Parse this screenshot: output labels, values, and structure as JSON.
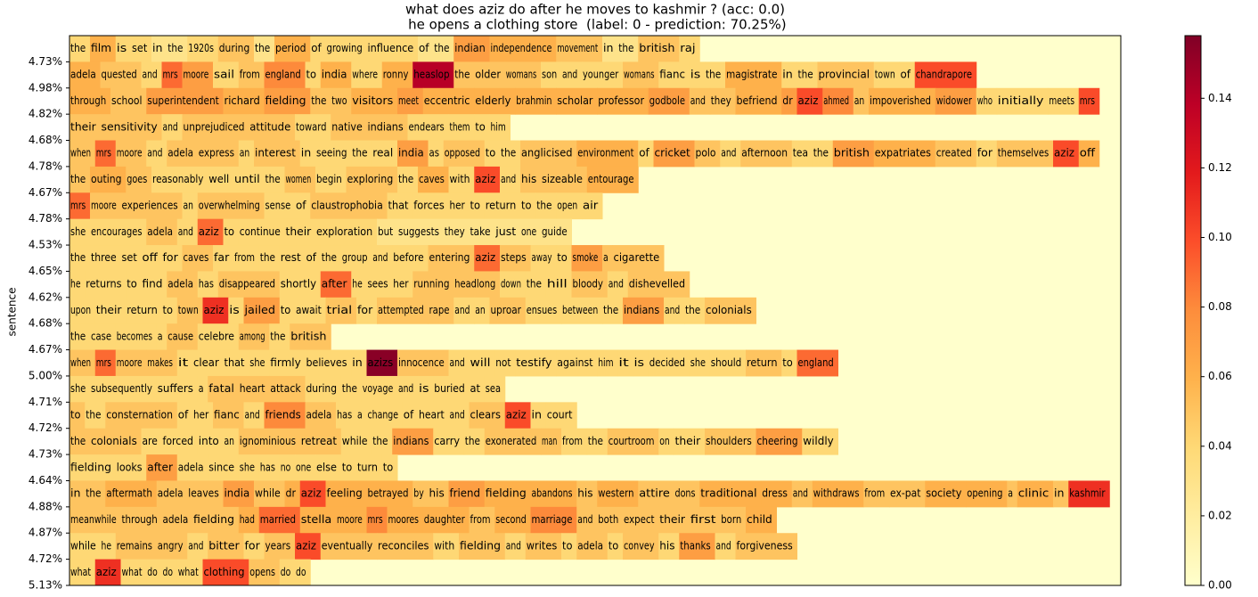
{
  "chart_data": {
    "type": "text-heatmap",
    "title": "what does aziz do after he moves to kashmir ? (acc: 0.0)",
    "subtitle": " he opens a clothing store  (label: 0 - prediction: 70.25%)",
    "ylabel": "sentence",
    "colormap": [
      "#ffffcc",
      "#ffeda0",
      "#fed976",
      "#feb24c",
      "#fd8d3c",
      "#fc4e2a",
      "#e31a1c",
      "#bd0026",
      "#800026"
    ],
    "clim": [
      0,
      0.158
    ],
    "cticks": [
      {
        "value": 0,
        "label": "0.00"
      },
      {
        "value": 0.02,
        "label": "0.02"
      },
      {
        "value": 0.04,
        "label": "0.04"
      },
      {
        "value": 0.06,
        "label": "0.06"
      },
      {
        "value": 0.08,
        "label": "0.08"
      },
      {
        "value": 0.1,
        "label": "0.10"
      },
      {
        "value": 0.12,
        "label": "0.12"
      },
      {
        "value": 0.14,
        "label": "0.14"
      }
    ],
    "rows": [
      {
        "label": "4.73%",
        "words": [
          "the",
          "film",
          "is",
          "set",
          "in",
          "the",
          "1920s",
          "during",
          "the",
          "period",
          "of",
          "growing",
          "influence",
          "of",
          "the",
          "indian",
          "independence",
          "movement",
          "in",
          "the",
          "british",
          "raj"
        ],
        "values": [
          0.04,
          0.06,
          0.04,
          0.04,
          0.03,
          0.03,
          0.04,
          0.05,
          0.03,
          0.06,
          0.04,
          0.04,
          0.04,
          0.03,
          0.03,
          0.07,
          0.06,
          0.05,
          0.03,
          0.03,
          0.05,
          0.04
        ]
      },
      {
        "label": "4.98%",
        "words": [
          "adela",
          "quested",
          "and",
          "mrs",
          "moore",
          "sail",
          "from",
          "england",
          "to",
          "india",
          "where",
          "ronny",
          "heaslop",
          "the",
          "older",
          "womans",
          "son",
          "and",
          "younger",
          "womans",
          "fianc",
          "is",
          "the",
          "magistrate",
          "in",
          "the",
          "provincial",
          "town",
          "of",
          "chandrapore"
        ],
        "values": [
          0.06,
          0.05,
          0.04,
          0.09,
          0.07,
          0.04,
          0.05,
          0.08,
          0.04,
          0.06,
          0.04,
          0.06,
          0.14,
          0.05,
          0.05,
          0.05,
          0.04,
          0.04,
          0.04,
          0.05,
          0.04,
          0.04,
          0.04,
          0.06,
          0.04,
          0.04,
          0.05,
          0.04,
          0.04,
          0.1
        ]
      },
      {
        "label": "4.82%",
        "words": [
          "through",
          "school",
          "superintendent",
          "richard",
          "fielding",
          "the",
          "two",
          "visitors",
          "meet",
          "eccentric",
          "elderly",
          "brahmin",
          "scholar",
          "professor",
          "godbole",
          "and",
          "they",
          "befriend",
          "dr",
          "aziz",
          "ahmed",
          "an",
          "impoverished",
          "widower",
          "who",
          "initially",
          "meets",
          "mrs"
        ],
        "values": [
          0.06,
          0.05,
          0.07,
          0.06,
          0.07,
          0.05,
          0.05,
          0.06,
          0.07,
          0.06,
          0.06,
          0.06,
          0.06,
          0.06,
          0.07,
          0.05,
          0.05,
          0.06,
          0.07,
          0.1,
          0.08,
          0.05,
          0.06,
          0.07,
          0.04,
          0.04,
          0.04,
          0.1
        ]
      },
      {
        "label": "4.68%",
        "words": [
          "their",
          "sensitivity",
          "and",
          "unprejudiced",
          "attitude",
          "toward",
          "native",
          "indians",
          "endears",
          "them",
          "to",
          "him"
        ],
        "values": [
          0.05,
          0.05,
          0.04,
          0.05,
          0.05,
          0.04,
          0.05,
          0.05,
          0.04,
          0.04,
          0.04,
          0.04
        ]
      },
      {
        "label": "4.78%",
        "words": [
          "when",
          "mrs",
          "moore",
          "and",
          "adela",
          "express",
          "an",
          "interest",
          "in",
          "seeing",
          "the",
          "real",
          "india",
          "as",
          "opposed",
          "to",
          "the",
          "anglicised",
          "environment",
          "of",
          "cricket",
          "polo",
          "and",
          "afternoon",
          "tea",
          "the",
          "british",
          "expatriates",
          "created",
          "for",
          "themselves",
          "aziz",
          "off"
        ],
        "values": [
          0.05,
          0.09,
          0.05,
          0.04,
          0.05,
          0.05,
          0.04,
          0.05,
          0.04,
          0.04,
          0.04,
          0.04,
          0.07,
          0.04,
          0.05,
          0.04,
          0.04,
          0.05,
          0.06,
          0.04,
          0.07,
          0.05,
          0.04,
          0.05,
          0.04,
          0.04,
          0.07,
          0.06,
          0.05,
          0.04,
          0.05,
          0.1,
          0.06
        ]
      },
      {
        "label": "4.67%",
        "words": [
          "the",
          "outing",
          "goes",
          "reasonably",
          "well",
          "until",
          "the",
          "women",
          "begin",
          "exploring",
          "the",
          "caves",
          "with",
          "aziz",
          "and",
          "his",
          "sizeable",
          "entourage"
        ],
        "values": [
          0.05,
          0.06,
          0.05,
          0.04,
          0.04,
          0.04,
          0.04,
          0.05,
          0.04,
          0.05,
          0.04,
          0.06,
          0.04,
          0.1,
          0.04,
          0.05,
          0.05,
          0.06
        ]
      },
      {
        "label": "4.78%",
        "words": [
          "mrs",
          "moore",
          "experiences",
          "an",
          "overwhelming",
          "sense",
          "of",
          "claustrophobia",
          "that",
          "forces",
          "her",
          "to",
          "return",
          "to",
          "the",
          "open",
          "air"
        ],
        "values": [
          0.09,
          0.05,
          0.05,
          0.04,
          0.05,
          0.04,
          0.04,
          0.05,
          0.04,
          0.04,
          0.04,
          0.04,
          0.04,
          0.04,
          0.04,
          0.04,
          0.04
        ]
      },
      {
        "label": "4.53%",
        "words": [
          "she",
          "encourages",
          "adela",
          "and",
          "aziz",
          "to",
          "continue",
          "their",
          "exploration",
          "but",
          "suggests",
          "they",
          "take",
          "just",
          "one",
          "guide"
        ],
        "values": [
          0.04,
          0.04,
          0.05,
          0.04,
          0.09,
          0.04,
          0.04,
          0.04,
          0.04,
          0.03,
          0.03,
          0.03,
          0.03,
          0.03,
          0.03,
          0.03
        ]
      },
      {
        "label": "4.65%",
        "words": [
          "the",
          "three",
          "set",
          "off",
          "for",
          "caves",
          "far",
          "from",
          "the",
          "rest",
          "of",
          "the",
          "group",
          "and",
          "before",
          "entering",
          "aziz",
          "steps",
          "away",
          "to",
          "smoke",
          "a",
          "cigarette"
        ],
        "values": [
          0.04,
          0.04,
          0.04,
          0.04,
          0.04,
          0.05,
          0.04,
          0.04,
          0.04,
          0.04,
          0.04,
          0.04,
          0.04,
          0.04,
          0.04,
          0.05,
          0.09,
          0.05,
          0.04,
          0.04,
          0.07,
          0.05,
          0.05
        ]
      },
      {
        "label": "4.62%",
        "words": [
          "he",
          "returns",
          "to",
          "find",
          "adela",
          "has",
          "disappeared",
          "shortly",
          "after",
          "he",
          "sees",
          "her",
          "running",
          "headlong",
          "down",
          "the",
          "hill",
          "bloody",
          "and",
          "dishevelled"
        ],
        "values": [
          0.04,
          0.04,
          0.04,
          0.04,
          0.05,
          0.04,
          0.05,
          0.04,
          0.09,
          0.04,
          0.04,
          0.04,
          0.05,
          0.05,
          0.04,
          0.04,
          0.04,
          0.05,
          0.04,
          0.05
        ]
      },
      {
        "label": "4.68%",
        "words": [
          "upon",
          "their",
          "return",
          "to",
          "town",
          "aziz",
          "is",
          "jailed",
          "to",
          "await",
          "trial",
          "for",
          "attempted",
          "rape",
          "and",
          "an",
          "uproar",
          "ensues",
          "between",
          "the",
          "indians",
          "and",
          "the",
          "colonials"
        ],
        "values": [
          0.04,
          0.04,
          0.04,
          0.04,
          0.05,
          0.11,
          0.04,
          0.07,
          0.04,
          0.04,
          0.05,
          0.04,
          0.05,
          0.05,
          0.04,
          0.04,
          0.05,
          0.04,
          0.04,
          0.04,
          0.07,
          0.04,
          0.04,
          0.05
        ]
      },
      {
        "label": "4.67%",
        "words": [
          "the",
          "case",
          "becomes",
          "a",
          "cause",
          "celebre",
          "among",
          "the",
          "british"
        ],
        "values": [
          0.04,
          0.04,
          0.04,
          0.04,
          0.05,
          0.04,
          0.05,
          0.04,
          0.05
        ]
      },
      {
        "label": "5.00%",
        "words": [
          "when",
          "mrs",
          "moore",
          "makes",
          "it",
          "clear",
          "that",
          "she",
          "firmly",
          "believes",
          "in",
          "azizs",
          "innocence",
          "and",
          "will",
          "not",
          "testify",
          "against",
          "him",
          "it",
          "is",
          "decided",
          "she",
          "should",
          "return",
          "to",
          "england"
        ],
        "values": [
          0.05,
          0.09,
          0.05,
          0.05,
          0.04,
          0.04,
          0.04,
          0.04,
          0.04,
          0.04,
          0.04,
          0.155,
          0.05,
          0.04,
          0.04,
          0.04,
          0.04,
          0.04,
          0.04,
          0.04,
          0.04,
          0.04,
          0.04,
          0.04,
          0.05,
          0.04,
          0.09
        ]
      },
      {
        "label": "4.71%",
        "words": [
          "she",
          "subsequently",
          "suffers",
          "a",
          "fatal",
          "heart",
          "attack",
          "during",
          "the",
          "voyage",
          "and",
          "is",
          "buried",
          "at",
          "sea"
        ],
        "values": [
          0.04,
          0.04,
          0.04,
          0.04,
          0.05,
          0.05,
          0.05,
          0.04,
          0.04,
          0.04,
          0.04,
          0.04,
          0.04,
          0.04,
          0.04
        ]
      },
      {
        "label": "4.72%",
        "words": [
          "to",
          "the",
          "consternation",
          "of",
          "her",
          "fianc",
          "and",
          "friends",
          "adela",
          "has",
          "a",
          "change",
          "of",
          "heart",
          "and",
          "clears",
          "aziz",
          "in",
          "court"
        ],
        "values": [
          0.05,
          0.04,
          0.05,
          0.04,
          0.04,
          0.05,
          0.04,
          0.08,
          0.05,
          0.04,
          0.04,
          0.04,
          0.04,
          0.04,
          0.04,
          0.05,
          0.1,
          0.04,
          0.04
        ]
      },
      {
        "label": "4.73%",
        "words": [
          "the",
          "colonials",
          "are",
          "forced",
          "into",
          "an",
          "ignominious",
          "retreat",
          "while",
          "the",
          "indians",
          "carry",
          "the",
          "exonerated",
          "man",
          "from",
          "the",
          "courtroom",
          "on",
          "their",
          "shoulders",
          "cheering",
          "wildly"
        ],
        "values": [
          0.05,
          0.05,
          0.04,
          0.04,
          0.04,
          0.04,
          0.05,
          0.05,
          0.04,
          0.04,
          0.07,
          0.04,
          0.04,
          0.05,
          0.05,
          0.04,
          0.04,
          0.05,
          0.04,
          0.04,
          0.05,
          0.07,
          0.04
        ]
      },
      {
        "label": "4.64%",
        "words": [
          "fielding",
          "looks",
          "after",
          "adela",
          "since",
          "she",
          "has",
          "no",
          "one",
          "else",
          "to",
          "turn",
          "to"
        ],
        "values": [
          0.04,
          0.04,
          0.07,
          0.04,
          0.04,
          0.04,
          0.04,
          0.04,
          0.04,
          0.04,
          0.04,
          0.04,
          0.04
        ]
      },
      {
        "label": "4.88%",
        "words": [
          "in",
          "the",
          "aftermath",
          "adela",
          "leaves",
          "india",
          "while",
          "dr",
          "aziz",
          "feeling",
          "betrayed",
          "by",
          "his",
          "friend",
          "fielding",
          "abandons",
          "his",
          "western",
          "attire",
          "dons",
          "traditional",
          "dress",
          "and",
          "withdraws",
          "from",
          "ex-pat",
          "society",
          "opening",
          "a",
          "clinic",
          "in",
          "kashmir"
        ],
        "values": [
          0.05,
          0.05,
          0.06,
          0.05,
          0.05,
          0.07,
          0.05,
          0.06,
          0.1,
          0.06,
          0.06,
          0.05,
          0.05,
          0.07,
          0.06,
          0.06,
          0.05,
          0.06,
          0.05,
          0.05,
          0.06,
          0.06,
          0.05,
          0.06,
          0.05,
          0.05,
          0.06,
          0.06,
          0.05,
          0.06,
          0.05,
          0.11
        ]
      },
      {
        "label": "4.87%",
        "words": [
          "meanwhile",
          "through",
          "adela",
          "fielding",
          "had",
          "married",
          "stella",
          "moore",
          "mrs",
          "moores",
          "daughter",
          "from",
          "second",
          "marriage",
          "and",
          "both",
          "expect",
          "their",
          "first",
          "born",
          "child"
        ],
        "values": [
          0.05,
          0.05,
          0.05,
          0.05,
          0.06,
          0.09,
          0.06,
          0.06,
          0.08,
          0.06,
          0.06,
          0.05,
          0.06,
          0.08,
          0.05,
          0.05,
          0.05,
          0.05,
          0.05,
          0.05,
          0.06
        ]
      },
      {
        "label": "4.72%",
        "words": [
          "while",
          "he",
          "remains",
          "angry",
          "and",
          "bitter",
          "for",
          "years",
          "aziz",
          "eventually",
          "reconciles",
          "with",
          "fielding",
          "and",
          "writes",
          "to",
          "adela",
          "to",
          "convey",
          "his",
          "thanks",
          "and",
          "forgiveness"
        ],
        "values": [
          0.04,
          0.04,
          0.05,
          0.05,
          0.04,
          0.05,
          0.04,
          0.05,
          0.1,
          0.05,
          0.05,
          0.04,
          0.05,
          0.04,
          0.05,
          0.04,
          0.05,
          0.04,
          0.05,
          0.04,
          0.07,
          0.04,
          0.05
        ]
      },
      {
        "label": "5.13%",
        "words": [
          "what",
          "aziz",
          "what",
          "do",
          "do",
          "what",
          "clothing",
          "opens",
          "do",
          "do"
        ],
        "values": [
          0.04,
          0.11,
          0.04,
          0.04,
          0.04,
          0.04,
          0.1,
          0.05,
          0.04,
          0.04
        ]
      }
    ]
  }
}
